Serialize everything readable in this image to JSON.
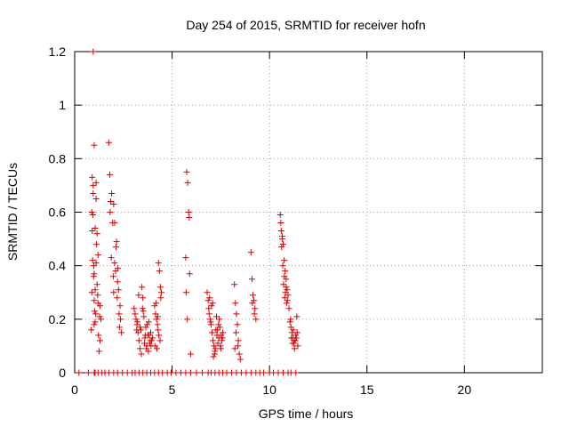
{
  "chart_data": {
    "type": "scatter",
    "title": "Day 254 of 2015, SRMTID for receiver hofn",
    "xlabel": "GPS time / hours",
    "ylabel": "SRMTID / TECUs",
    "xlim": [
      0,
      24
    ],
    "ylim": [
      0,
      1.2
    ],
    "xticks": [
      0,
      5,
      10,
      15,
      20
    ],
    "yticks": [
      0,
      0.2,
      0.4,
      0.6,
      0.8,
      1,
      1.2
    ],
    "xtick_labels": [
      "0",
      "5",
      "10",
      "15",
      "20"
    ],
    "ytick_labels": [
      "0",
      "0.2",
      "0.4",
      "0.6",
      "0.8",
      "1",
      "1.2"
    ],
    "grid": true,
    "marker": "+",
    "color": "#dd0000",
    "series": [
      {
        "name": "SRMTID",
        "x": [
          0.22,
          0.7,
          1.0,
          1.05,
          1.2,
          1.4,
          1.55,
          1.75,
          2.0,
          2.2,
          2.45,
          2.7,
          2.95,
          3.1,
          3.3,
          3.5,
          3.7,
          3.9,
          4.1,
          4.3,
          4.5,
          4.75,
          4.95,
          5.2,
          5.45,
          5.7,
          5.95,
          6.25,
          6.55,
          6.85,
          7.0,
          7.2,
          7.4,
          7.6,
          7.8,
          8.05,
          8.3,
          8.55,
          8.8,
          9.05,
          9.3,
          9.5,
          9.7,
          10.0,
          10.2,
          10.45,
          10.7,
          10.95,
          11.1,
          11.35,
          0.95,
          0.9,
          0.88,
          1.0,
          1.1,
          1.05,
          0.92,
          0.98,
          1.15,
          1.2,
          0.85,
          1.0,
          1.08,
          0.9,
          1.25,
          1.12,
          0.95,
          1.3,
          1.0,
          1.18,
          1.05,
          0.93,
          1.22,
          1.1,
          1.35,
          1.0,
          0.97,
          1.15,
          1.28,
          1.05,
          0.88,
          1.2,
          1.1,
          1.02,
          1.3,
          0.95,
          1.75,
          1.8,
          1.9,
          1.85,
          1.95,
          2.0,
          2.05,
          1.88,
          2.1,
          2.15,
          1.98,
          2.2,
          2.25,
          2.05,
          2.3,
          2.35,
          2.12,
          2.18,
          2.4,
          2.28,
          2.0,
          2.22,
          1.82,
          2.33,
          3.05,
          3.15,
          3.2,
          3.25,
          3.3,
          3.35,
          3.4,
          3.45,
          3.5,
          3.55,
          3.6,
          3.65,
          3.7,
          3.75,
          3.8,
          3.85,
          3.9,
          3.95,
          4.0,
          3.1,
          3.22,
          3.36,
          3.48,
          3.62,
          3.78,
          3.92,
          3.18,
          3.42,
          3.58,
          3.72,
          3.88,
          3.28,
          3.52,
          3.68,
          3.82,
          4.1,
          4.15,
          4.2,
          4.25,
          4.3,
          4.35,
          4.4,
          4.45,
          4.18,
          4.28,
          4.38,
          4.22,
          4.32,
          4.12,
          4.42,
          4.26,
          5.7,
          5.75,
          5.8,
          5.85,
          5.9,
          5.95,
          5.78,
          5.88,
          5.72,
          6.8,
          6.85,
          6.9,
          6.95,
          7.0,
          7.05,
          7.1,
          7.15,
          7.2,
          7.25,
          7.3,
          7.35,
          7.4,
          7.45,
          7.5,
          7.55,
          7.6,
          6.88,
          6.98,
          7.08,
          7.18,
          7.28,
          7.38,
          7.48,
          7.58,
          7.02,
          7.22,
          7.42,
          6.92,
          7.12,
          7.32,
          7.52,
          8.2,
          8.25,
          8.3,
          8.35,
          8.4,
          8.45,
          8.5,
          8.28,
          8.38,
          8.22,
          9.05,
          9.1,
          9.15,
          9.2,
          9.25,
          9.3,
          9.12,
          9.22,
          10.55,
          10.6,
          10.65,
          10.7,
          10.75,
          10.8,
          10.85,
          10.9,
          10.95,
          10.62,
          10.72,
          10.82,
          10.92,
          10.58,
          10.68,
          10.78,
          10.88,
          10.66,
          10.76,
          10.86,
          11.0,
          11.05,
          11.1,
          11.15,
          11.2,
          11.25,
          11.3,
          11.35,
          11.4,
          11.45,
          11.12,
          11.22,
          11.32,
          11.42,
          11.08,
          11.18,
          11.28,
          11.38
        ],
        "y": [
          0,
          0,
          0,
          0,
          0,
          0,
          0,
          0,
          0,
          0,
          0,
          0,
          0,
          0,
          0,
          0,
          0,
          0,
          0,
          0,
          0,
          0,
          0,
          0,
          0,
          0,
          0,
          0,
          0,
          0,
          0,
          0,
          0,
          0,
          0,
          0,
          0,
          0,
          0,
          0,
          0,
          0,
          0,
          0,
          0,
          0,
          0,
          0,
          0,
          0,
          1.2,
          0.73,
          0.6,
          0.85,
          0.71,
          0.54,
          0.42,
          0.4,
          0.33,
          0.26,
          0.16,
          0.18,
          0.22,
          0.53,
          0.08,
          0.48,
          0.67,
          0.12,
          0.37,
          0.29,
          0.19,
          0.59,
          0.14,
          0.41,
          0.2,
          0.27,
          0.36,
          0.52,
          0.21,
          0.31,
          0.3,
          0.44,
          0.65,
          0.23,
          0.25,
          0.7,
          0.86,
          0.74,
          0.67,
          0.64,
          0.56,
          0.63,
          0.56,
          0.43,
          0.38,
          0.49,
          0.36,
          0.34,
          0.31,
          0.41,
          0.17,
          0.2,
          0.47,
          0.28,
          0.15,
          0.22,
          0.3,
          0.39,
          0.6,
          0.25,
          0.24,
          0.2,
          0.18,
          0.15,
          0.12,
          0.09,
          0.16,
          0.32,
          0.28,
          0.21,
          0.13,
          0.17,
          0.1,
          0.14,
          0.19,
          0.11,
          0.15,
          0.12,
          0.13,
          0.22,
          0.19,
          0.17,
          0.24,
          0.14,
          0.08,
          0.1,
          0.16,
          0.07,
          0.11,
          0.18,
          0.12,
          0.29,
          0.23,
          0.09,
          0.14,
          0.25,
          0.22,
          0.2,
          0.18,
          0.41,
          0.38,
          0.32,
          0.3,
          0.26,
          0.16,
          0.12,
          0.09,
          0.14,
          0.1,
          0.28,
          0.21,
          0.43,
          0.75,
          0.71,
          0.6,
          0.37,
          0.07,
          0.2,
          0.58,
          0.3,
          0.3,
          0.27,
          0.22,
          0.2,
          0.18,
          0.15,
          0.12,
          0.1,
          0.08,
          0.16,
          0.14,
          0.11,
          0.13,
          0.17,
          0.09,
          0.12,
          0.15,
          0.24,
          0.19,
          0.26,
          0.07,
          0.21,
          0.18,
          0.1,
          0.13,
          0.25,
          0.09,
          0.2,
          0.28,
          0.06,
          0.16,
          0.14,
          0.33,
          0.26,
          0.22,
          0.18,
          0.12,
          0.07,
          0.05,
          0.15,
          0.1,
          0.09,
          0.45,
          0.35,
          0.29,
          0.27,
          0.24,
          0.2,
          0.26,
          0.22,
          0.59,
          0.53,
          0.51,
          0.48,
          0.42,
          0.38,
          0.35,
          0.31,
          0.29,
          0.47,
          0.33,
          0.3,
          0.27,
          0.56,
          0.4,
          0.28,
          0.26,
          0.5,
          0.36,
          0.32,
          0.24,
          0.19,
          0.17,
          0.15,
          0.13,
          0.11,
          0.12,
          0.14,
          0.21,
          0.1,
          0.13,
          0.16,
          0.12,
          0.15,
          0.2,
          0.11,
          0.09,
          0.13
        ]
      }
    ]
  }
}
